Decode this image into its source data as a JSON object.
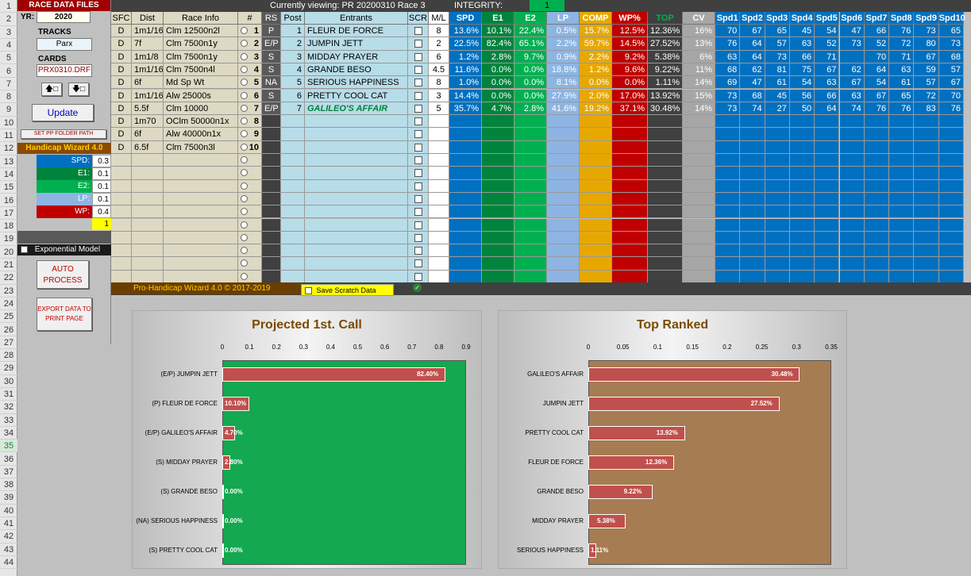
{
  "row_numbers": [
    "1",
    "2",
    "3",
    "4",
    "5",
    "6",
    "7",
    "8",
    "9",
    "10",
    "11",
    "12",
    "13",
    "14",
    "15",
    "16",
    "17",
    "18",
    "19",
    "20",
    "21",
    "22",
    "23",
    "24",
    "25",
    "26",
    "27",
    "28",
    "29",
    "30",
    "31",
    "32",
    "33",
    "34",
    "35",
    "36",
    "37",
    "38",
    "39",
    "40",
    "41",
    "42",
    "43",
    "44"
  ],
  "left_panel": {
    "header": "RACE DATA FILES",
    "yr_label": "YR:",
    "yr_value": "2020",
    "tracks_label": "TRACKS",
    "track_value": "Parx",
    "cards_label": "CARDS",
    "card_value": "PRX0310.DRF",
    "update_label": "Update",
    "set_pp_label": "SET PP FOLDER PATH",
    "wizard_title": "Handicap Wizard 4.0",
    "weights": [
      {
        "label": "SPD:",
        "value": "0.3",
        "color": "#0070c0"
      },
      {
        "label": "E1:",
        "value": "0.1",
        "color": "#00843d"
      },
      {
        "label": "E2:",
        "value": "0.1",
        "color": "#00b050"
      },
      {
        "label": "LP:",
        "value": "0.1",
        "color": "#8db4e2"
      },
      {
        "label": "WP:",
        "value": "0.4",
        "color": "#c00000"
      }
    ],
    "weight_total": "1",
    "expo_label": "Exponential Model",
    "auto_label": "AUTO PROCESS",
    "export_label": "EXPORT DATA TO PRINT PAGE"
  },
  "top_bar": {
    "viewing": "Currently viewing: PR 20200310 Race 3",
    "integrity_label": "INTEGRITY:",
    "integrity_value": "1"
  },
  "columns": [
    "SFC",
    "Dist",
    "Race Info",
    "#",
    "RS",
    "Post",
    "Entrants",
    "SCR",
    "M/L",
    "SPD",
    "E1",
    "E2",
    "LP",
    "COMP",
    "WP%",
    "TOP",
    "CV",
    "Spd1",
    "Spd2",
    "Spd3",
    "Spd4",
    "Spd5",
    "Spd6",
    "Spd7",
    "Spd8",
    "Spd9",
    "Spd10"
  ],
  "races": [
    {
      "sfc": "D",
      "dist": "1m1/16",
      "info": "Clm 12500n2l",
      "num": "1"
    },
    {
      "sfc": "D",
      "dist": "7f",
      "info": "Clm 7500n1y",
      "num": "2"
    },
    {
      "sfc": "D",
      "dist": "1m1/8",
      "info": "Clm 7500n1y",
      "num": "3"
    },
    {
      "sfc": "D",
      "dist": "1m1/16",
      "info": "Clm 7500n4l",
      "num": "4"
    },
    {
      "sfc": "D",
      "dist": "6f",
      "info": "Md Sp Wt",
      "num": "5"
    },
    {
      "sfc": "D",
      "dist": "1m1/16",
      "info": "Alw 25000s",
      "num": "6"
    },
    {
      "sfc": "D",
      "dist": "5.5f",
      "info": "Clm 10000",
      "num": "7"
    },
    {
      "sfc": "D",
      "dist": "1m70",
      "info": "OClm 50000n1x",
      "num": "8"
    },
    {
      "sfc": "D",
      "dist": "6f",
      "info": "Alw 40000n1x",
      "num": "9"
    },
    {
      "sfc": "D",
      "dist": "6.5f",
      "info": "Clm 7500n3l",
      "num": "10"
    }
  ],
  "entrants": [
    {
      "rs": "P",
      "post": "1",
      "name": "FLEUR DE FORCE",
      "ml": "8",
      "spd": "13.6%",
      "e1": "10.1%",
      "e2": "22.4%",
      "lp": "0.5%",
      "comp": "15.7%",
      "wp": "12.5%",
      "top": "12.36%",
      "cv": "16%",
      "spds": [
        "70",
        "67",
        "65",
        "45",
        "54",
        "47",
        "66",
        "76",
        "73",
        "65"
      ]
    },
    {
      "rs": "E/P",
      "post": "2",
      "name": "JUMPIN JETT",
      "ml": "2",
      "spd": "22.5%",
      "e1": "82.4%",
      "e2": "65.1%",
      "lp": "2.2%",
      "comp": "59.7%",
      "wp": "14.5%",
      "top": "27.52%",
      "cv": "13%",
      "spds": [
        "76",
        "64",
        "57",
        "63",
        "52",
        "73",
        "52",
        "72",
        "80",
        "73"
      ]
    },
    {
      "rs": "S",
      "post": "3",
      "name": "MIDDAY PRAYER",
      "ml": "6",
      "spd": "1.2%",
      "e1": "2.8%",
      "e2": "9.7%",
      "lp": "0.9%",
      "comp": "2.2%",
      "wp": "9.2%",
      "top": "5.38%",
      "cv": "6%",
      "spds": [
        "63",
        "64",
        "73",
        "66",
        "71",
        "",
        "70",
        "71",
        "67",
        "68"
      ]
    },
    {
      "rs": "S",
      "post": "4",
      "name": "GRANDE BESO",
      "ml": "4.5",
      "spd": "11.6%",
      "e1": "0.0%",
      "e2": "0.0%",
      "lp": "18.8%",
      "comp": "1.2%",
      "wp": "9.6%",
      "top": "9.22%",
      "cv": "11%",
      "spds": [
        "68",
        "62",
        "81",
        "75",
        "67",
        "62",
        "64",
        "63",
        "59",
        "57"
      ]
    },
    {
      "rs": "NA",
      "post": "5",
      "name": "SERIOUS HAPPINESS",
      "ml": "8",
      "spd": "1.0%",
      "e1": "0.0%",
      "e2": "0.0%",
      "lp": "8.1%",
      "comp": "0.0%",
      "wp": "0.0%",
      "top": "1.11%",
      "cv": "14%",
      "spds": [
        "69",
        "47",
        "61",
        "54",
        "63",
        "67",
        "54",
        "61",
        "57",
        "67"
      ]
    },
    {
      "rs": "S",
      "post": "6",
      "name": "PRETTY COOL CAT",
      "ml": "3",
      "spd": "14.4%",
      "e1": "0.0%",
      "e2": "0.0%",
      "lp": "27.9%",
      "comp": "2.0%",
      "wp": "17.0%",
      "top": "13.92%",
      "cv": "15%",
      "spds": [
        "73",
        "68",
        "45",
        "56",
        "66",
        "63",
        "67",
        "65",
        "72",
        "70"
      ]
    },
    {
      "rs": "E/P",
      "post": "7",
      "name": "GALILEO'S AFFAIR",
      "ml": "5",
      "spd": "35.7%",
      "e1": "4.7%",
      "e2": "2.8%",
      "lp": "41.6%",
      "comp": "19.2%",
      "wp": "37.1%",
      "top": "30.48%",
      "cv": "14%",
      "spds": [
        "73",
        "74",
        "27",
        "50",
        "64",
        "74",
        "76",
        "76",
        "83",
        "76"
      ]
    }
  ],
  "footer": {
    "copyright": "Pro-Handicap Wizard 4.0 © 2017-2019",
    "save_scratch": "Save Scratch Data"
  },
  "colors": {
    "spd": "#0070c0",
    "e1": "#00843d",
    "e2": "#00b050",
    "lp": "#8db4e2",
    "comp": "#e6a800",
    "wp": "#c00000",
    "cv": "#a6a6a6",
    "spd_cols": "#0070c0",
    "tan": "#ddd9c3",
    "lightblue": "#b7dde8"
  },
  "chart_data": [
    {
      "type": "bar",
      "title": "Projected 1st. Call",
      "orientation": "horizontal",
      "categories": [
        "(E/P) JUMPIN JETT",
        "(P) FLEUR DE FORCE",
        "(E/P) GALILEO'S AFFAIR",
        "(S) MIDDAY PRAYER",
        "(S) GRANDE BESO",
        "(NA) SERIOUS HAPPINESS",
        "(S) PRETTY COOL CAT"
      ],
      "values": [
        0.824,
        0.101,
        0.047,
        0.028,
        0,
        0,
        0
      ],
      "labels": [
        "82.40%",
        "10.10%",
        "4.70%",
        "2.80%",
        "0.00%",
        "0.00%",
        "0.00%"
      ],
      "xlim": [
        0,
        0.9
      ],
      "ticks": [
        "0",
        "0.1",
        "0.2",
        "0.3",
        "0.4",
        "0.5",
        "0.6",
        "0.7",
        "0.8",
        "0.9"
      ],
      "plot_color": "#14a850"
    },
    {
      "type": "bar",
      "title": "Top Ranked",
      "orientation": "horizontal",
      "categories": [
        "GALILEO'S AFFAIR",
        "JUMPIN JETT",
        "PRETTY COOL CAT",
        "FLEUR DE FORCE",
        "GRANDE BESO",
        "MIDDAY PRAYER",
        "SERIOUS HAPPINESS"
      ],
      "values": [
        0.3048,
        0.2752,
        0.1392,
        0.1236,
        0.0922,
        0.0538,
        0.0111
      ],
      "labels": [
        "30.48%",
        "27.52%",
        "13.92%",
        "12.36%",
        "9.22%",
        "5.38%",
        "1.11%"
      ],
      "xlim": [
        0,
        0.35
      ],
      "ticks": [
        "0",
        "0.05",
        "0.1",
        "0.15",
        "0.2",
        "0.25",
        "0.3",
        "0.35"
      ],
      "plot_color": "#a67c52"
    }
  ]
}
